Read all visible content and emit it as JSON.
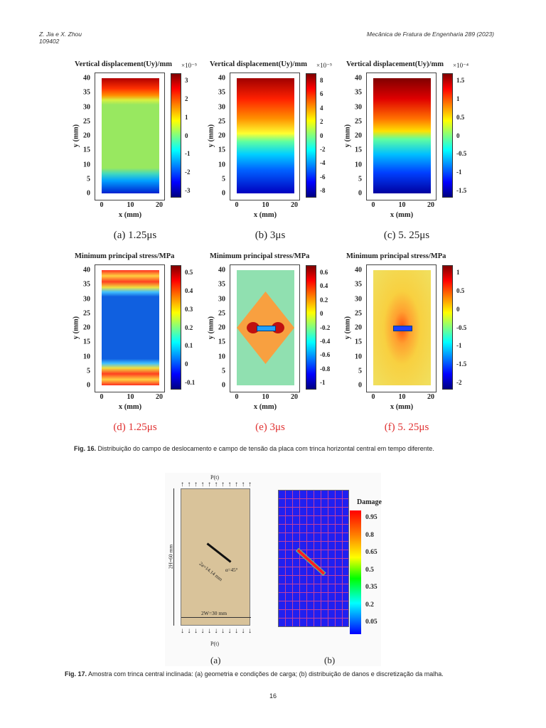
{
  "header": {
    "authors": "Z. Jia e X. Zhou",
    "article_id": "109402",
    "journal": "Mecânica de Fratura de Engenharia 289 (2023)"
  },
  "fig16": {
    "panels": [
      {
        "title": "Vertical displacement(Uy)/mm",
        "exponent": "×10⁻⁵",
        "cbar_ticks": [
          "3",
          "2",
          "1",
          "0",
          "-1",
          "-2",
          "-3"
        ],
        "caption": "(a)  1.25μs",
        "caption_color": "black",
        "fill": "pa"
      },
      {
        "title": "Vertical displacement(Uy)/mm",
        "exponent": "×10⁻⁵",
        "cbar_ticks": [
          "8",
          "6",
          "4",
          "2",
          "0",
          "-2",
          "-4",
          "-6",
          "-8"
        ],
        "caption": "(b)  3μs",
        "caption_color": "black",
        "fill": "pb"
      },
      {
        "title": "Vertical displacement(Uy)/mm",
        "exponent": "×10⁻⁴",
        "cbar_ticks": [
          "1.5",
          "1",
          "0.5",
          "0",
          "-0.5",
          "-1",
          "-1.5"
        ],
        "caption": "(c)  5. 25μs",
        "caption_color": "black",
        "fill": "pc"
      },
      {
        "title": "Minimum principal stress/MPa",
        "exponent": "",
        "cbar_ticks": [
          "0.5",
          "0.4",
          "0.3",
          "0.2",
          "0.1",
          "0",
          "-0.1"
        ],
        "caption": "(d) 1.25μs",
        "caption_color": "red",
        "fill": "pd"
      },
      {
        "title": "Minimum principal stress/MPa",
        "exponent": "",
        "cbar_ticks": [
          "0.6",
          "0.4",
          "0.2",
          "0",
          "-0.2",
          "-0.4",
          "-0.6",
          "-0.8",
          "-1"
        ],
        "caption": "(e)  3μs",
        "caption_color": "red",
        "fill": "pe"
      },
      {
        "title": "Minimum principal stress/MPa",
        "exponent": "",
        "cbar_ticks": [
          "1",
          "0.5",
          "0",
          "-0.5",
          "-1",
          "-1.5",
          "-2"
        ],
        "caption": "(f)  5. 25μs",
        "caption_color": "red",
        "fill": "pf"
      }
    ],
    "y_ticks": [
      "40",
      "35",
      "30",
      "25",
      "20",
      "15",
      "10",
      "5",
      "0"
    ],
    "x_ticks": [
      "0",
      "10",
      "20"
    ],
    "xlabel": "x (mm)",
    "ylabel": "y (mm)",
    "caption_label": "Fig. 16.",
    "caption_text": " Distribuição do campo de deslocamento e campo de tensão da placa com trinca horizontal central em tempo diferente."
  },
  "fig17": {
    "load_top": "P(t)",
    "load_bottom": "P(t)",
    "height_label": "2H=60 mm",
    "width_label": "2W=30 mm",
    "crack_label": "2a=14.14 mm",
    "angle_label": "α=45°",
    "colorbar_title": "Damage",
    "colorbar_ticks": [
      "0.95",
      "0.8",
      "0.65",
      "0.5",
      "0.35",
      "0.2",
      "0.05"
    ],
    "sub_a": "(a)",
    "sub_b": "(b)",
    "caption_label": "Fig. 17.",
    "caption_text": " Amostra com trinca central inclinada: (a) geometria e condições de carga; (b) distribuição de danos e discretização da malha."
  },
  "page_number": "16"
}
